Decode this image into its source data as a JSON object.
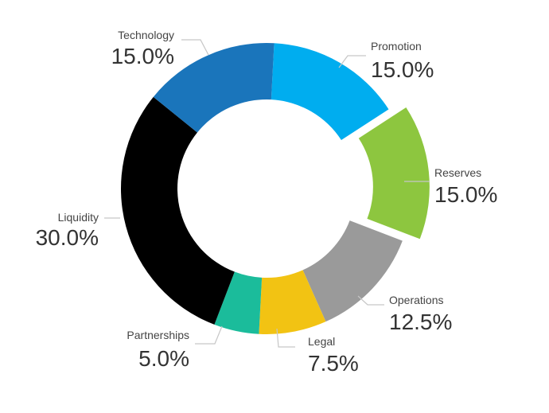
{
  "chart_data": {
    "type": "pie",
    "variant": "donut",
    "legend": "none",
    "categories": [
      "Promotion",
      "Reserves",
      "Operations",
      "Legal",
      "Partnerships",
      "Liquidity",
      "Technology"
    ],
    "values": [
      15.0,
      15.0,
      12.5,
      7.5,
      5.0,
      30.0,
      15.0
    ],
    "value_labels": [
      "15.0%",
      "15.0%",
      "12.5%",
      "7.5%",
      "5.0%",
      "30.0%",
      "15.0%"
    ],
    "colors": [
      "#00adef",
      "#8dc63f",
      "#9a9a9a",
      "#f2c313",
      "#1bbc9b",
      "#000000",
      "#1a75bb"
    ],
    "exploded": [
      "Reserves"
    ]
  }
}
